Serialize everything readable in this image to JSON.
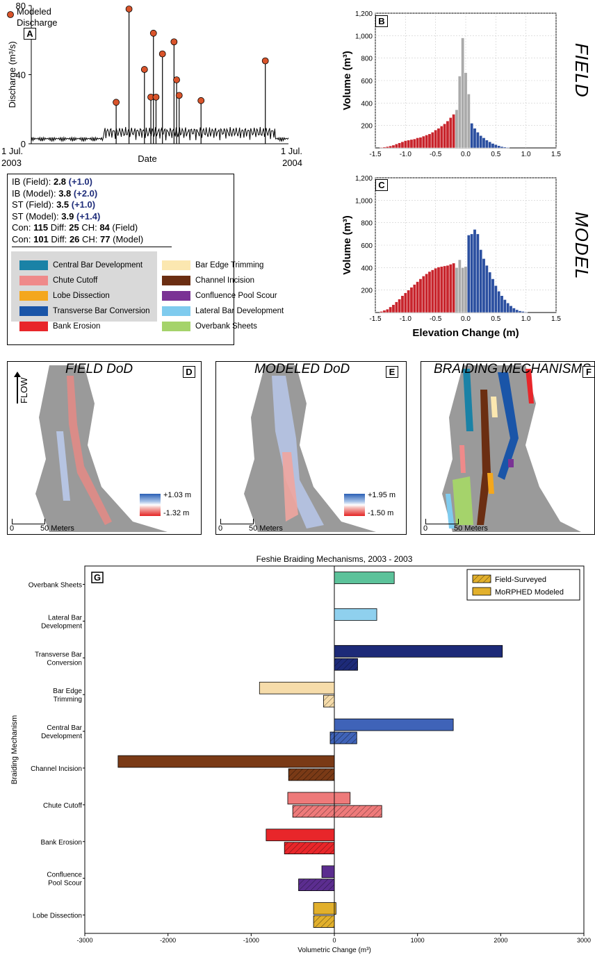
{
  "chart_data": [
    {
      "id": "A",
      "type": "line",
      "panel_label": "A",
      "ylabel": "Discharge (m³/s)",
      "xlabel": "Date",
      "x_start_label": [
        "1 Jul.",
        "2003"
      ],
      "x_end_label": [
        "1 Jul.",
        "2004"
      ],
      "ylim": [
        0,
        80
      ],
      "yticks": [
        0,
        40,
        80
      ],
      "legend": "Modeled Discharge",
      "marker_color": "#d9542b",
      "peaks": [
        {
          "x": 0.33,
          "y": 24
        },
        {
          "x": 0.38,
          "y": 78
        },
        {
          "x": 0.44,
          "y": 43
        },
        {
          "x": 0.465,
          "y": 27
        },
        {
          "x": 0.475,
          "y": 64
        },
        {
          "x": 0.485,
          "y": 27
        },
        {
          "x": 0.51,
          "y": 52
        },
        {
          "x": 0.555,
          "y": 59
        },
        {
          "x": 0.565,
          "y": 37
        },
        {
          "x": 0.575,
          "y": 28
        },
        {
          "x": 0.66,
          "y": 25
        },
        {
          "x": 0.91,
          "y": 48
        }
      ]
    },
    {
      "id": "B",
      "type": "bar",
      "panel_label": "B",
      "side_label": "FIELD",
      "ylabel": "Volume (m³)",
      "xlim": [
        -1.5,
        1.5
      ],
      "ylim": [
        0,
        1200
      ],
      "xticks": [
        "-1.5",
        "-1.0",
        "-0.5",
        "0.0",
        "0.5",
        "1.0",
        "1.5"
      ],
      "yticks": [
        "200",
        "400",
        "600",
        "800",
        "1,000",
        "1,200"
      ],
      "bin_width": 0.05,
      "colors": {
        "negative": "#c8242c",
        "neutral": "#aaaaaa",
        "positive": "#2b4fa0"
      },
      "bins": [
        {
          "x": -1.4,
          "y": 5,
          "c": "negative"
        },
        {
          "x": -1.35,
          "y": 8,
          "c": "negative"
        },
        {
          "x": -1.3,
          "y": 12,
          "c": "negative"
        },
        {
          "x": -1.25,
          "y": 18,
          "c": "negative"
        },
        {
          "x": -1.2,
          "y": 25,
          "c": "negative"
        },
        {
          "x": -1.15,
          "y": 35,
          "c": "negative"
        },
        {
          "x": -1.1,
          "y": 45,
          "c": "negative"
        },
        {
          "x": -1.05,
          "y": 55,
          "c": "negative"
        },
        {
          "x": -1.0,
          "y": 65,
          "c": "negative"
        },
        {
          "x": -0.95,
          "y": 70,
          "c": "negative"
        },
        {
          "x": -0.9,
          "y": 75,
          "c": "negative"
        },
        {
          "x": -0.85,
          "y": 80,
          "c": "negative"
        },
        {
          "x": -0.8,
          "y": 90,
          "c": "negative"
        },
        {
          "x": -0.75,
          "y": 95,
          "c": "negative"
        },
        {
          "x": -0.7,
          "y": 105,
          "c": "negative"
        },
        {
          "x": -0.65,
          "y": 115,
          "c": "negative"
        },
        {
          "x": -0.6,
          "y": 125,
          "c": "negative"
        },
        {
          "x": -0.55,
          "y": 140,
          "c": "negative"
        },
        {
          "x": -0.5,
          "y": 160,
          "c": "negative"
        },
        {
          "x": -0.45,
          "y": 175,
          "c": "negative"
        },
        {
          "x": -0.4,
          "y": 195,
          "c": "negative"
        },
        {
          "x": -0.35,
          "y": 215,
          "c": "negative"
        },
        {
          "x": -0.3,
          "y": 240,
          "c": "negative"
        },
        {
          "x": -0.25,
          "y": 270,
          "c": "negative"
        },
        {
          "x": -0.2,
          "y": 300,
          "c": "negative"
        },
        {
          "x": -0.15,
          "y": 340,
          "c": "neutral"
        },
        {
          "x": -0.1,
          "y": 640,
          "c": "neutral"
        },
        {
          "x": -0.05,
          "y": 980,
          "c": "neutral"
        },
        {
          "x": 0.0,
          "y": 670,
          "c": "neutral"
        },
        {
          "x": 0.05,
          "y": 480,
          "c": "neutral"
        },
        {
          "x": 0.1,
          "y": 220,
          "c": "positive"
        },
        {
          "x": 0.15,
          "y": 175,
          "c": "positive"
        },
        {
          "x": 0.2,
          "y": 140,
          "c": "positive"
        },
        {
          "x": 0.25,
          "y": 110,
          "c": "positive"
        },
        {
          "x": 0.3,
          "y": 90,
          "c": "positive"
        },
        {
          "x": 0.35,
          "y": 70,
          "c": "positive"
        },
        {
          "x": 0.4,
          "y": 55,
          "c": "positive"
        },
        {
          "x": 0.45,
          "y": 40,
          "c": "positive"
        },
        {
          "x": 0.5,
          "y": 30,
          "c": "positive"
        },
        {
          "x": 0.55,
          "y": 20,
          "c": "positive"
        },
        {
          "x": 0.6,
          "y": 12,
          "c": "positive"
        },
        {
          "x": 0.65,
          "y": 8,
          "c": "positive"
        },
        {
          "x": 0.7,
          "y": 5,
          "c": "positive"
        }
      ]
    },
    {
      "id": "C",
      "type": "bar",
      "panel_label": "C",
      "side_label": "MODEL",
      "ylabel": "Volume (m³)",
      "xlabel": "Elevation Change (m)",
      "xlim": [
        -1.5,
        1.5
      ],
      "ylim": [
        0,
        1200
      ],
      "xticks": [
        "-1.5",
        "-1.0",
        "-0.5",
        "0.0",
        "0.5",
        "1.0",
        "1.5"
      ],
      "yticks": [
        "200",
        "400",
        "600",
        "800",
        "1,000",
        "1,200"
      ],
      "bin_width": 0.05,
      "colors": {
        "negative": "#c8242c",
        "neutral": "#aaaaaa",
        "positive": "#2b4fa0"
      },
      "bins": [
        {
          "x": -1.4,
          "y": 10,
          "c": "negative"
        },
        {
          "x": -1.35,
          "y": 20,
          "c": "negative"
        },
        {
          "x": -1.3,
          "y": 30,
          "c": "negative"
        },
        {
          "x": -1.25,
          "y": 50,
          "c": "negative"
        },
        {
          "x": -1.2,
          "y": 70,
          "c": "negative"
        },
        {
          "x": -1.15,
          "y": 95,
          "c": "negative"
        },
        {
          "x": -1.1,
          "y": 120,
          "c": "negative"
        },
        {
          "x": -1.05,
          "y": 150,
          "c": "negative"
        },
        {
          "x": -1.0,
          "y": 175,
          "c": "negative"
        },
        {
          "x": -0.95,
          "y": 200,
          "c": "negative"
        },
        {
          "x": -0.9,
          "y": 225,
          "c": "negative"
        },
        {
          "x": -0.85,
          "y": 250,
          "c": "negative"
        },
        {
          "x": -0.8,
          "y": 275,
          "c": "negative"
        },
        {
          "x": -0.75,
          "y": 300,
          "c": "negative"
        },
        {
          "x": -0.7,
          "y": 325,
          "c": "negative"
        },
        {
          "x": -0.65,
          "y": 345,
          "c": "negative"
        },
        {
          "x": -0.6,
          "y": 365,
          "c": "negative"
        },
        {
          "x": -0.55,
          "y": 380,
          "c": "negative"
        },
        {
          "x": -0.5,
          "y": 395,
          "c": "negative"
        },
        {
          "x": -0.45,
          "y": 405,
          "c": "negative"
        },
        {
          "x": -0.4,
          "y": 410,
          "c": "negative"
        },
        {
          "x": -0.35,
          "y": 415,
          "c": "negative"
        },
        {
          "x": -0.3,
          "y": 420,
          "c": "negative"
        },
        {
          "x": -0.25,
          "y": 430,
          "c": "negative"
        },
        {
          "x": -0.2,
          "y": 440,
          "c": "negative"
        },
        {
          "x": -0.15,
          "y": 400,
          "c": "neutral"
        },
        {
          "x": -0.1,
          "y": 470,
          "c": "neutral"
        },
        {
          "x": -0.05,
          "y": 400,
          "c": "neutral"
        },
        {
          "x": 0.0,
          "y": 410,
          "c": "neutral"
        },
        {
          "x": 0.05,
          "y": 690,
          "c": "positive"
        },
        {
          "x": 0.1,
          "y": 700,
          "c": "positive"
        },
        {
          "x": 0.15,
          "y": 740,
          "c": "positive"
        },
        {
          "x": 0.2,
          "y": 700,
          "c": "positive"
        },
        {
          "x": 0.25,
          "y": 560,
          "c": "positive"
        },
        {
          "x": 0.3,
          "y": 480,
          "c": "positive"
        },
        {
          "x": 0.35,
          "y": 420,
          "c": "positive"
        },
        {
          "x": 0.4,
          "y": 360,
          "c": "positive"
        },
        {
          "x": 0.45,
          "y": 300,
          "c": "positive"
        },
        {
          "x": 0.5,
          "y": 240,
          "c": "positive"
        },
        {
          "x": 0.55,
          "y": 190,
          "c": "positive"
        },
        {
          "x": 0.6,
          "y": 150,
          "c": "positive"
        },
        {
          "x": 0.65,
          "y": 115,
          "c": "positive"
        },
        {
          "x": 0.7,
          "y": 85,
          "c": "positive"
        },
        {
          "x": 0.75,
          "y": 60,
          "c": "positive"
        },
        {
          "x": 0.8,
          "y": 40,
          "c": "positive"
        },
        {
          "x": 0.85,
          "y": 25,
          "c": "positive"
        },
        {
          "x": 0.9,
          "y": 15,
          "c": "positive"
        },
        {
          "x": 0.95,
          "y": 10,
          "c": "positive"
        },
        {
          "x": 1.0,
          "y": 5,
          "c": "positive"
        }
      ]
    },
    {
      "id": "G",
      "type": "bar",
      "orientation": "horizontal",
      "panel_label": "G",
      "title": "Feshie Braiding Mechanisms, 2003 - 2003",
      "xlabel": "Volumetric Change (m³)",
      "ylabel": "Braiding Mechanism",
      "xlim": [
        -3000,
        3000
      ],
      "xticks": [
        "-3000",
        "-2000",
        "-1000",
        "0",
        "1000",
        "2000",
        "3000"
      ],
      "legend": [
        "Field-Surveyed",
        "MoRPHED Modeled"
      ],
      "categories": [
        [
          "Overbank Sheets"
        ],
        [
          "Lateral Bar",
          "Development"
        ],
        [
          "Transverse Bar",
          "Conversion"
        ],
        [
          "Bar Edge",
          "Trimming"
        ],
        [
          "Central Bar",
          "Development"
        ],
        [
          "Channel Incision"
        ],
        [
          "Chute Cutoff"
        ],
        [
          "Bank Erosion"
        ],
        [
          "Confluence",
          "Pool Scour"
        ],
        [
          "Lobe Dissection"
        ]
      ],
      "colors": [
        "#5cc29a",
        "#8fd0ee",
        "#1d2a78",
        "#f6dcaa",
        "#3f63b8",
        "#7a3a16",
        "#ee7a7a",
        "#e8262a",
        "#5b2d8f",
        "#e2b02c"
      ],
      "series": [
        {
          "name": "Field-Surveyed",
          "pattern": "hatch",
          "values": [
            [
              0,
              0
            ],
            [
              0,
              0
            ],
            [
              0,
              280
            ],
            [
              -130,
              0
            ],
            [
              -50,
              270
            ],
            [
              -550,
              0
            ],
            [
              -500,
              570
            ],
            [
              -600,
              0
            ],
            [
              -430,
              0
            ],
            [
              -250,
              0
            ]
          ]
        },
        {
          "name": "MoRPHED Modeled",
          "pattern": "solid",
          "values": [
            [
              0,
              720
            ],
            [
              0,
              510
            ],
            [
              0,
              2020
            ],
            [
              -900,
              0
            ],
            [
              0,
              1430
            ],
            [
              -2600,
              0
            ],
            [
              -560,
              190
            ],
            [
              -820,
              0
            ],
            [
              -150,
              0
            ],
            [
              -250,
              20
            ]
          ]
        }
      ]
    }
  ],
  "stats": {
    "ib_field": {
      "label": "IB (Field):",
      "value": "2.8",
      "delta": "(+1.0)"
    },
    "ib_model": {
      "label": "IB (Model):",
      "value": "3.8",
      "delta": "(+2.0)"
    },
    "st_field": {
      "label": "ST (Field):",
      "value": "3.5",
      "delta": "(+1.0)"
    },
    "st_model": {
      "label": "ST (Model):",
      "value": "3.9",
      "delta": "(+1.4)"
    },
    "con_field": {
      "con_label": "Con:",
      "con": "115",
      "diff_label": "Diff:",
      "diff": "25",
      "ch_label": "CH:",
      "ch": "84",
      "suffix": "(Field)"
    },
    "con_model": {
      "con_label": "Con:",
      "con": "101",
      "diff_label": "Diff:",
      "diff": "26",
      "ch_label": "CH:",
      "ch": "77",
      "suffix": "(Model)"
    }
  },
  "mechanism_legend": [
    {
      "label": "Central Bar Development",
      "color": "#1a82a6"
    },
    {
      "label": "Chute Cutoff",
      "color": "#ef8a8a"
    },
    {
      "label": "Lobe Dissection",
      "color": "#f4a71d"
    },
    {
      "label": "Transverse Bar Conversion",
      "color": "#1a55a8"
    },
    {
      "label": "Bank Erosion",
      "color": "#e8262a"
    },
    {
      "label": "Bar Edge Trimming",
      "color": "#fbe7b0"
    },
    {
      "label": "Channel Incision",
      "color": "#6b2e12"
    },
    {
      "label": "Confluence Pool Scour",
      "color": "#7a3294"
    },
    {
      "label": "Lateral Bar Development",
      "color": "#7fcbee"
    },
    {
      "label": "Overbank Sheets",
      "color": "#a5d36b"
    }
  ],
  "maps": {
    "d": {
      "title": "FIELD DoD",
      "letter": "D",
      "flow": "FLOW",
      "cbar_max": "+1.03 m",
      "cbar_min": "-1.32 m",
      "scale_zero": "0",
      "scale_label": "50 Meters"
    },
    "e": {
      "title": "MODELED DoD",
      "letter": "E",
      "cbar_max": "+1.95 m",
      "cbar_min": "-1.50 m",
      "scale_zero": "0",
      "scale_label": "50 Meters"
    },
    "f": {
      "title": "BRAIDING MECHANISMS",
      "letter": "F",
      "scale_zero": "0",
      "scale_label": "50 Meters"
    }
  }
}
